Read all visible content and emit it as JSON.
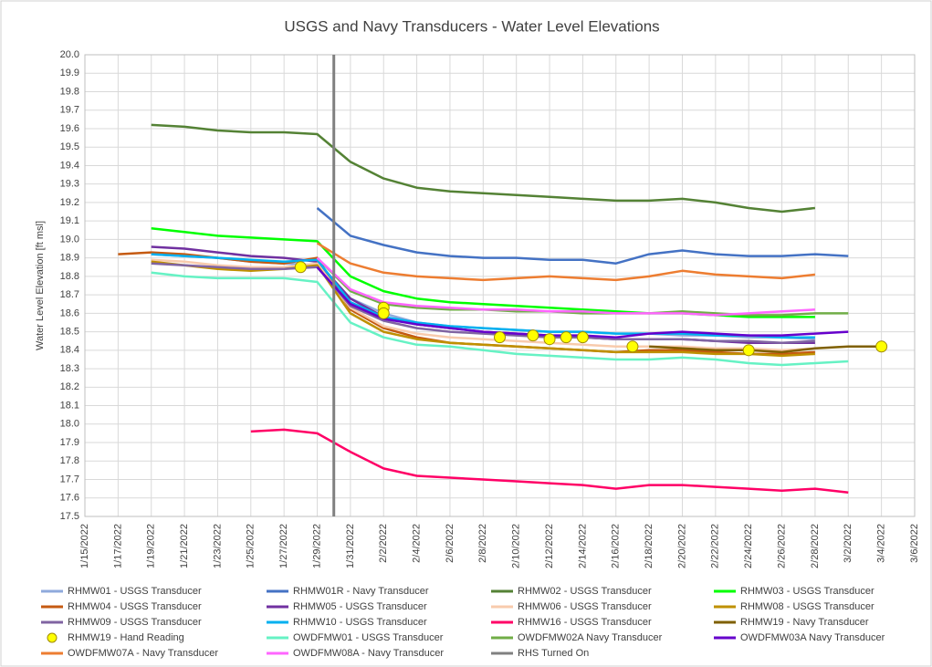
{
  "chart_data": {
    "type": "line",
    "title": "USGS and Navy Transducers - Water Level Elevations",
    "y_label": "Water Level Elevation [ft msl]",
    "grid": true,
    "legend": "bottom",
    "xlim": [
      "1/15/2022",
      "3/6/2022"
    ],
    "xticks": [
      "1/15/2022",
      "1/17/2022",
      "1/19/2022",
      "1/21/2022",
      "1/23/2022",
      "1/25/2022",
      "1/27/2022",
      "1/29/2022",
      "1/31/2022",
      "2/2/2022",
      "2/4/2022",
      "2/6/2022",
      "2/8/2022",
      "2/10/2022",
      "2/12/2022",
      "2/14/2022",
      "2/16/2022",
      "2/18/2022",
      "2/20/2022",
      "2/22/2022",
      "2/24/2022",
      "2/26/2022",
      "2/28/2022",
      "3/2/2022",
      "3/4/2022",
      "3/6/2022"
    ],
    "ylim": [
      17.5,
      20
    ],
    "yticks": [
      17.5,
      17.6,
      17.7,
      17.8,
      17.9,
      {
        "value": 18,
        "label": "18.0"
      },
      18.1,
      18.2,
      18.3,
      18.4,
      18.5,
      18.6,
      18.7,
      18.8,
      18.9,
      {
        "value": 19,
        "label": "19.0"
      },
      19.1,
      19.2,
      19.3,
      19.4,
      19.5,
      19.6,
      19.7,
      19.8,
      19.9,
      {
        "value": 20,
        "label": "20.0"
      }
    ],
    "x": [
      "1/17/2022",
      "1/19/2022",
      "1/21/2022",
      "1/23/2022",
      "1/25/2022",
      "1/27/2022",
      "1/29/2022",
      "1/31/2022",
      "2/2/2022",
      "2/4/2022",
      "2/6/2022",
      "2/8/2022",
      "2/10/2022",
      "2/12/2022",
      "2/14/2022",
      "2/16/2022",
      "2/18/2022",
      "2/20/2022",
      "2/22/2022",
      "2/24/2022",
      "2/26/2022",
      "2/28/2022",
      "3/2/2022",
      "3/4/2022"
    ],
    "series": [
      {
        "name": "RHMW01 - USGS Transducer",
        "color": "#8faadc",
        "values": [
          null,
          18.92,
          18.91,
          18.9,
          18.88,
          18.87,
          18.86,
          18.68,
          18.6,
          18.55,
          18.53,
          18.52,
          18.51,
          18.5,
          18.5,
          18.49,
          18.49,
          18.48,
          18.48,
          18.47,
          18.47,
          18.46,
          null,
          null
        ]
      },
      {
        "name": "RHMW01R - Navy Transducer",
        "color": "#4472c4",
        "values": [
          null,
          null,
          null,
          null,
          null,
          null,
          19.17,
          19.02,
          18.97,
          18.93,
          18.91,
          18.9,
          18.9,
          18.89,
          18.89,
          18.87,
          18.92,
          18.94,
          18.92,
          18.91,
          18.91,
          18.92,
          18.91,
          null
        ]
      },
      {
        "name": "RHMW02 - USGS Transducer",
        "color": "#548235",
        "values": [
          null,
          19.62,
          19.61,
          19.59,
          19.58,
          19.58,
          19.57,
          19.42,
          19.33,
          19.28,
          19.26,
          19.25,
          19.24,
          19.23,
          19.22,
          19.21,
          19.21,
          19.22,
          19.2,
          19.17,
          19.15,
          19.17,
          null,
          null
        ]
      },
      {
        "name": "RHMW03 - USGS Transducer",
        "color": "#00ff00",
        "values": [
          null,
          19.06,
          19.04,
          19.02,
          19.01,
          19.0,
          18.99,
          18.8,
          18.72,
          18.68,
          18.66,
          18.65,
          18.64,
          18.63,
          18.62,
          18.61,
          18.6,
          18.6,
          18.59,
          18.58,
          18.58,
          18.58,
          null,
          null
        ]
      },
      {
        "name": "RHMW04 - USGS Transducer",
        "color": "#c55a11",
        "values": [
          18.92,
          18.93,
          18.92,
          18.9,
          18.88,
          18.87,
          18.9,
          18.62,
          18.52,
          18.47,
          18.44,
          18.43,
          18.42,
          18.41,
          18.4,
          18.39,
          18.4,
          18.4,
          18.39,
          18.38,
          18.38,
          18.39,
          null,
          null
        ]
      },
      {
        "name": "RHMW05 - USGS Transducer",
        "color": "#7030a0",
        "values": [
          null,
          18.96,
          18.95,
          18.93,
          18.91,
          18.9,
          18.88,
          18.68,
          18.58,
          18.54,
          18.52,
          18.5,
          18.49,
          18.48,
          18.47,
          18.46,
          18.46,
          18.46,
          18.45,
          18.44,
          18.44,
          18.44,
          null,
          null
        ]
      },
      {
        "name": "RHMW06 - USGS Transducer",
        "color": "#f8cbad",
        "values": [
          null,
          18.89,
          18.88,
          18.86,
          18.85,
          18.85,
          18.87,
          18.63,
          18.53,
          18.49,
          18.47,
          18.46,
          18.45,
          18.44,
          18.43,
          18.42,
          18.42,
          18.42,
          18.41,
          18.41,
          18.4,
          18.41,
          null,
          null
        ]
      },
      {
        "name": "RHMW08 - USGS Transducer",
        "color": "#bf9000",
        "values": [
          null,
          18.88,
          18.86,
          18.84,
          18.83,
          18.84,
          18.86,
          18.6,
          18.5,
          18.46,
          18.44,
          18.43,
          18.42,
          18.41,
          18.4,
          18.39,
          18.39,
          18.39,
          18.38,
          18.38,
          18.37,
          18.38,
          null,
          null
        ]
      },
      {
        "name": "RHMW09 - USGS Transducer",
        "color": "#8064a2",
        "values": [
          null,
          18.87,
          18.86,
          18.85,
          18.84,
          18.84,
          18.85,
          18.64,
          18.56,
          18.52,
          18.5,
          18.49,
          18.48,
          18.47,
          18.47,
          18.46,
          18.46,
          18.46,
          18.45,
          18.45,
          18.44,
          18.45,
          null,
          null
        ]
      },
      {
        "name": "RHMW10 - USGS Transducer",
        "color": "#00b0f0",
        "values": [
          null,
          18.92,
          18.91,
          18.9,
          18.89,
          18.88,
          18.89,
          18.66,
          18.58,
          18.55,
          18.53,
          18.52,
          18.51,
          18.5,
          18.5,
          18.49,
          18.49,
          18.49,
          18.48,
          18.48,
          18.47,
          18.47,
          null,
          null
        ]
      },
      {
        "name": "RHMW16 - USGS Transducer",
        "color": "#ff0066",
        "values": [
          null,
          null,
          null,
          null,
          17.96,
          17.97,
          17.95,
          17.85,
          17.76,
          17.72,
          17.71,
          17.7,
          17.69,
          17.68,
          17.67,
          17.65,
          17.67,
          17.67,
          17.66,
          17.65,
          17.64,
          17.65,
          17.63,
          null
        ]
      },
      {
        "name": "RHMW19 - Navy Transducer",
        "color": "#7f6000",
        "values": [
          null,
          null,
          null,
          null,
          null,
          null,
          null,
          null,
          null,
          null,
          null,
          null,
          null,
          null,
          null,
          null,
          18.42,
          18.41,
          18.4,
          18.4,
          18.39,
          18.41,
          18.42,
          18.42
        ]
      },
      {
        "name": "RHMW19 - Hand Reading",
        "color": "#ffff00",
        "kind": "marker",
        "x": [
          "1/28/2022",
          "2/2/2022",
          "2/2/2022",
          "2/9/2022",
          "2/11/2022",
          "2/12/2022",
          "2/13/2022",
          "2/14/2022",
          "2/17/2022",
          "2/24/2022",
          "3/4/2022"
        ],
        "values": [
          18.85,
          18.63,
          18.6,
          18.47,
          18.48,
          18.46,
          18.47,
          18.47,
          18.42,
          18.4,
          18.42
        ]
      },
      {
        "name": "OWDFMW01 - USGS Transducer",
        "color": "#66f2c4",
        "values": [
          null,
          18.82,
          18.8,
          18.79,
          18.79,
          18.79,
          18.77,
          18.55,
          18.47,
          18.43,
          18.42,
          18.4,
          18.38,
          18.37,
          18.36,
          18.35,
          18.35,
          18.36,
          18.35,
          18.33,
          18.32,
          18.33,
          18.34,
          null
        ]
      },
      {
        "name": "OWDFMW02A Navy Transducer",
        "color": "#70ad47",
        "values": [
          null,
          null,
          null,
          null,
          null,
          null,
          18.9,
          18.72,
          18.65,
          18.63,
          18.62,
          18.62,
          18.61,
          18.61,
          18.6,
          18.6,
          18.6,
          18.61,
          18.6,
          18.59,
          18.59,
          18.6,
          18.6,
          null
        ]
      },
      {
        "name": "OWDFMW03A Navy Transducer",
        "color": "#6600cc",
        "values": [
          null,
          null,
          null,
          null,
          null,
          null,
          18.85,
          18.65,
          18.57,
          18.54,
          18.52,
          18.5,
          18.49,
          18.48,
          18.48,
          18.47,
          18.49,
          18.5,
          18.49,
          18.48,
          18.48,
          18.49,
          18.5,
          null
        ]
      },
      {
        "name": "OWDFMW07A - Navy Transducer",
        "color": "#ed7d31",
        "values": [
          null,
          null,
          null,
          null,
          null,
          null,
          18.98,
          18.87,
          18.82,
          18.8,
          18.79,
          18.78,
          18.79,
          18.8,
          18.79,
          18.78,
          18.8,
          18.83,
          18.81,
          18.8,
          18.79,
          18.81,
          null,
          null
        ]
      },
      {
        "name": "OWDFMW08A - Navy Transducer",
        "color": "#ff66ff",
        "values": [
          null,
          null,
          null,
          null,
          null,
          null,
          18.9,
          18.73,
          18.66,
          18.64,
          18.63,
          18.62,
          18.62,
          18.61,
          18.61,
          18.6,
          18.6,
          18.6,
          18.59,
          18.6,
          18.61,
          18.62,
          null,
          null
        ]
      },
      {
        "name": "RHS Turned On",
        "color": "#808080",
        "kind": "vline",
        "x": "1/30/2022"
      }
    ]
  }
}
